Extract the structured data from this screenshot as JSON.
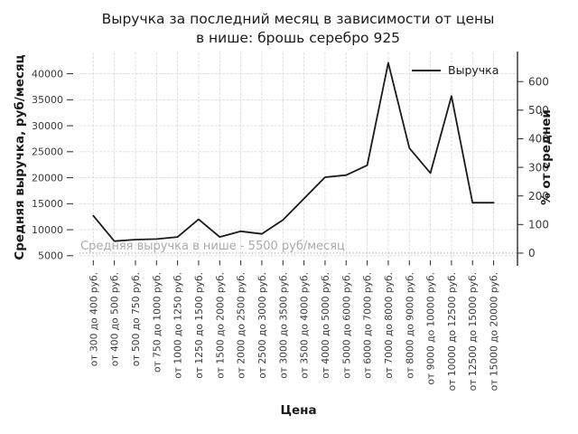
{
  "chart_data": {
    "type": "line",
    "title": "Выручка за последний месяц в зависимости от цены\nв нише: брошь серебро 925",
    "xlabel": "Цена",
    "ylabel_left": "Средняя выручка, руб/месяц",
    "ylabel_right": "% от средней",
    "legend": {
      "position": "upper right",
      "frame": false,
      "entries": [
        {
          "label": "Выручка",
          "color": "#1a1a1a"
        }
      ]
    },
    "categories": [
      "от 300 до 400 руб.",
      "от 400 до 500 руб.",
      "от 500 до 750 руб.",
      "от 750 до 1000 руб.",
      "от 1000 до 1250 руб.",
      "от 1250 до 1500 руб.",
      "от 1500 до 2000 руб.",
      "от 2000 до 2500 руб.",
      "от 2500 до 3000 руб.",
      "от 3000 до 3500 руб.",
      "от 3500 до 4000 руб.",
      "от 4000 до 5000 руб.",
      "от 5000 до 6000 руб.",
      "от 6000 до 7000 руб.",
      "от 7000 до 8000 руб.",
      "от 8000 до 9000 руб.",
      "от 9000 до 10000 руб.",
      "от 10000 до 12500 руб.",
      "от 12500 до 15000 руб.",
      "от 15000 до 20000 руб."
    ],
    "series": [
      {
        "name": "Выручка",
        "color": "#1a1a1a",
        "values": [
          12700,
          7800,
          8100,
          8200,
          8600,
          12000,
          8600,
          9700,
          9200,
          11900,
          16000,
          20100,
          20500,
          22400,
          42100,
          25700,
          20900,
          35700,
          15200,
          15200
        ]
      }
    ],
    "baseline": {
      "value": 5500,
      "label": "Средняя выручка в нише - 5500 руб/месяц",
      "color": "#ababab"
    },
    "left_axis": {
      "ticks": [
        5000,
        10000,
        15000,
        20000,
        25000,
        30000,
        35000,
        40000
      ],
      "range": [
        4100,
        44100
      ]
    },
    "right_axis": {
      "ticks": [
        0,
        100,
        200,
        300,
        400,
        500,
        600
      ],
      "unit": "% of niche average",
      "average": 5500
    },
    "grid": {
      "show": true,
      "style": "dashed",
      "color": "#dcdcdc"
    }
  }
}
